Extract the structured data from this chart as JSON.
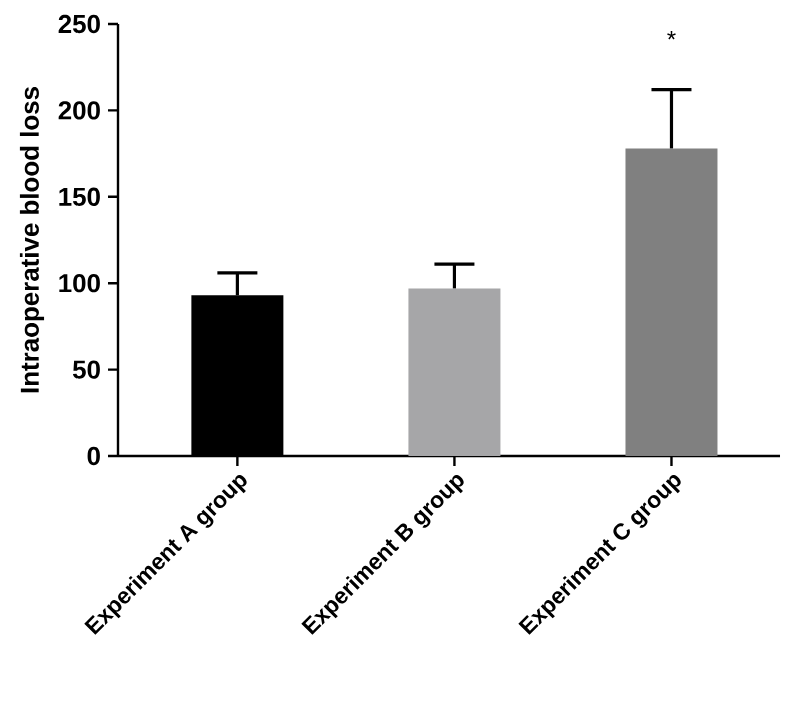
{
  "chart_data": {
    "type": "bar",
    "ylabel": "Intraoperative blood loss",
    "categories": [
      "Experiment A group",
      "Experiment B group",
      "Experiment C group"
    ],
    "values": [
      93,
      97,
      178
    ],
    "colors": [
      "#000000",
      "#a6a6a8",
      "#808080"
    ],
    "errors": [
      [
        93,
        106
      ],
      [
        97,
        111
      ],
      [
        178,
        212
      ]
    ],
    "ylim": [
      0,
      250
    ],
    "yticks": [
      0,
      50,
      100,
      150,
      200,
      250
    ],
    "annotations": [
      "*"
    ]
  }
}
